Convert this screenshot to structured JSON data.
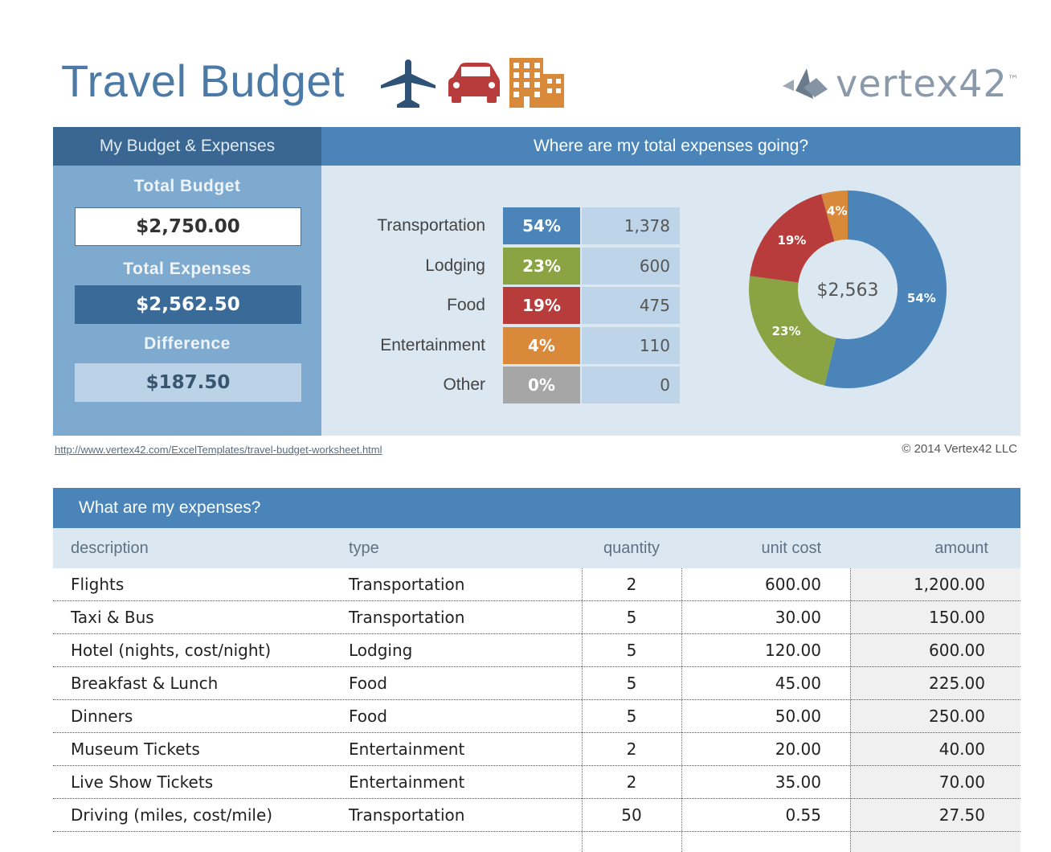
{
  "title": "Travel Budget",
  "brand": {
    "name": "vertex42",
    "mark": "™"
  },
  "summary": {
    "header": "My Budget & Expenses",
    "total_budget_label": "Total Budget",
    "total_budget": "$2,750.00",
    "total_expenses_label": "Total Expenses",
    "total_expenses": "$2,562.50",
    "difference_label": "Difference",
    "difference": "$187.50"
  },
  "breakdown": {
    "header": "Where are my total expenses going?",
    "center_label": "$2,563"
  },
  "chart_data": {
    "type": "pie",
    "categories": [
      "Transportation",
      "Lodging",
      "Food",
      "Entertainment",
      "Other"
    ],
    "values": [
      1378,
      600,
      475,
      110,
      0
    ],
    "percent_labels": [
      "54%",
      "23%",
      "19%",
      "4%",
      "0%"
    ],
    "value_labels": [
      "1,378",
      "600",
      "475",
      "110",
      "0"
    ],
    "colors": [
      "#4a84b8",
      "#8aa343",
      "#b93c3c",
      "#d9893a",
      "#a6a6a6"
    ]
  },
  "footer": {
    "url": "http://www.vertex42.com/ExcelTemplates/travel-budget-worksheet.html",
    "copyright": "© 2014 Vertex42 LLC"
  },
  "expenses": {
    "header": "What are my expenses?",
    "columns": [
      "description",
      "type",
      "quantity",
      "unit cost",
      "amount"
    ],
    "rows": [
      [
        "Flights",
        "Transportation",
        "2",
        "600.00",
        "1,200.00"
      ],
      [
        "Taxi & Bus",
        "Transportation",
        "5",
        "30.00",
        "150.00"
      ],
      [
        "Hotel (nights, cost/night)",
        "Lodging",
        "5",
        "120.00",
        "600.00"
      ],
      [
        "Breakfast & Lunch",
        "Food",
        "5",
        "45.00",
        "225.00"
      ],
      [
        "Dinners",
        "Food",
        "5",
        "50.00",
        "250.00"
      ],
      [
        "Museum Tickets",
        "Entertainment",
        "2",
        "20.00",
        "40.00"
      ],
      [
        "Live Show Tickets",
        "Entertainment",
        "2",
        "35.00",
        "70.00"
      ],
      [
        "Driving (miles, cost/mile)",
        "Transportation",
        "50",
        "0.55",
        "27.50"
      ]
    ]
  }
}
